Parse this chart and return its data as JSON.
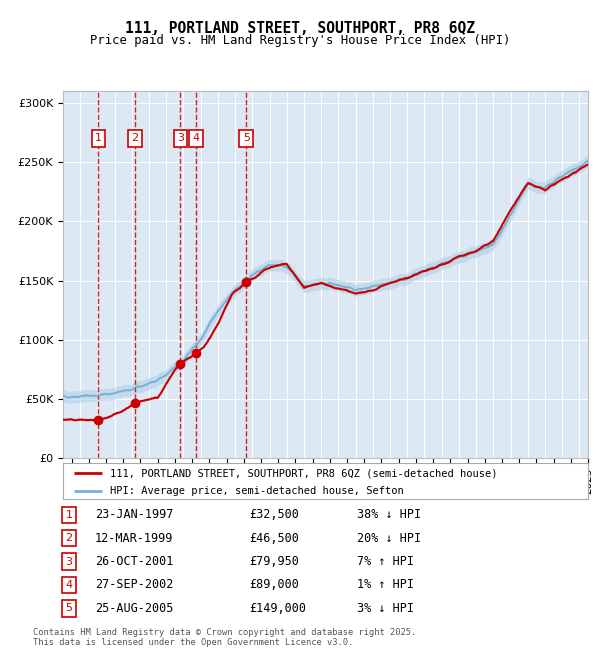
{
  "title": "111, PORTLAND STREET, SOUTHPORT, PR8 6QZ",
  "subtitle": "Price paid vs. HM Land Registry's House Price Index (HPI)",
  "legend_line1": "111, PORTLAND STREET, SOUTHPORT, PR8 6QZ (semi-detached house)",
  "legend_line2": "HPI: Average price, semi-detached house, Sefton",
  "footer": "Contains HM Land Registry data © Crown copyright and database right 2025.\nThis data is licensed under the Open Government Licence v3.0.",
  "sale_dates_x": [
    1997.06,
    1999.19,
    2001.82,
    2002.74,
    2005.65
  ],
  "sale_prices_y": [
    32500,
    46500,
    79950,
    89000,
    149000
  ],
  "sale_labels": [
    "1",
    "2",
    "3",
    "4",
    "5"
  ],
  "sale_label_dates": [
    "23-JAN-1997",
    "12-MAR-1999",
    "26-OCT-2001",
    "27-SEP-2002",
    "25-AUG-2005"
  ],
  "sale_label_prices": [
    "£32,500",
    "£46,500",
    "£79,950",
    "£89,000",
    "£149,000"
  ],
  "sale_label_hpi": [
    "38% ↓ HPI",
    "20% ↓ HPI",
    "7% ↑ HPI",
    "1% ↑ HPI",
    "3% ↓ HPI"
  ],
  "bg_color": "#dce9f5",
  "red_line_color": "#cc0000",
  "blue_line_color": "#7ab0d4",
  "blue_fill_color": "#aacce4",
  "marker_color": "#cc0000",
  "dashed_line_color": "#cc0000",
  "box_color": "#cc0000",
  "ylim": [
    0,
    310000
  ],
  "xlim_start": 1995.0,
  "xlim_end": 2025.5,
  "ytick_values": [
    0,
    50000,
    100000,
    150000,
    200000,
    250000,
    300000
  ],
  "ytick_labels": [
    "£0",
    "£50K",
    "£100K",
    "£150K",
    "£200K",
    "£250K",
    "£300K"
  ],
  "hpi_anchors_x": [
    1995.0,
    1996.0,
    1997.0,
    1998.0,
    1999.0,
    2000.0,
    2001.0,
    2002.0,
    2003.0,
    2004.0,
    2005.0,
    2006.0,
    2007.0,
    2008.0,
    2009.0,
    2010.0,
    2011.0,
    2012.0,
    2013.0,
    2014.0,
    2015.0,
    2016.0,
    2017.0,
    2018.0,
    2019.0,
    2020.0,
    2021.0,
    2022.0,
    2023.0,
    2024.0,
    2025.5
  ],
  "hpi_anchors_y": [
    52000,
    52500,
    53000,
    55000,
    58000,
    63000,
    70000,
    83000,
    100000,
    125000,
    142000,
    155000,
    163000,
    162000,
    145000,
    148000,
    146000,
    142000,
    144000,
    148000,
    152000,
    158000,
    164000,
    169000,
    175000,
    180000,
    205000,
    232000,
    228000,
    238000,
    250000
  ],
  "red_anchors_x": [
    1995.0,
    1996.0,
    1997.0,
    1997.5,
    1998.5,
    1999.19,
    1999.8,
    2000.5,
    2001.5,
    2001.82,
    2002.5,
    2002.74,
    2003.2,
    2004.0,
    2004.8,
    2005.65,
    2006.2,
    2006.8,
    2007.5,
    2008.0,
    2009.0,
    2010.0,
    2011.0,
    2012.0,
    2013.0,
    2014.0,
    2015.0,
    2016.0,
    2017.0,
    2018.0,
    2019.0,
    2020.0,
    2021.0,
    2022.0,
    2023.0,
    2024.0,
    2025.5
  ],
  "red_anchors_y": [
    32500,
    32500,
    32500,
    33500,
    40000,
    46500,
    49000,
    51000,
    75000,
    79950,
    86000,
    89000,
    94000,
    113000,
    138000,
    149000,
    153000,
    160000,
    163000,
    164000,
    144000,
    148000,
    143000,
    139000,
    142000,
    148000,
    152000,
    158000,
    163000,
    170000,
    175000,
    183000,
    210000,
    232000,
    227000,
    235000,
    248000
  ]
}
